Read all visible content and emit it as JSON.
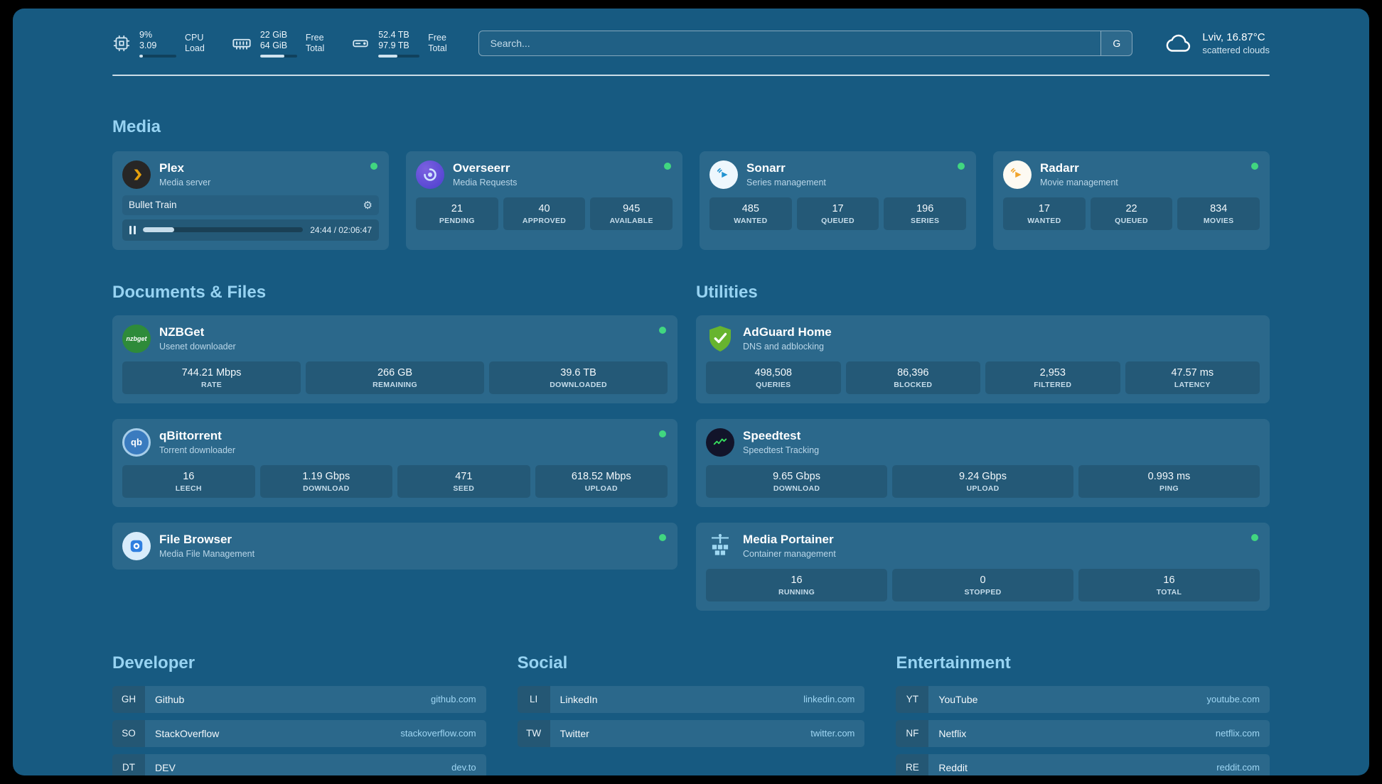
{
  "icons": {
    "gear": "⚙"
  },
  "header": {
    "cpu": {
      "percent": "9%",
      "load": "3.09",
      "label1": "CPU",
      "label2": "Load",
      "bar": 9
    },
    "mem": {
      "free": "22 GiB",
      "total": "64 GiB",
      "label1": "Free",
      "label2": "Total",
      "bar": 66
    },
    "disk": {
      "free": "52.4 TB",
      "total": "97.9 TB",
      "label1": "Free",
      "label2": "Total",
      "bar": 47
    },
    "search": {
      "placeholder": "Search...",
      "button": "G"
    },
    "weather": {
      "location": "Lviv, 16.87°C",
      "condition": "scattered clouds"
    }
  },
  "media": {
    "title": "Media",
    "plex": {
      "name": "Plex",
      "subtitle": "Media server",
      "now_playing": "Bullet Train",
      "time": "24:44 / 02:06:47",
      "progress": 19.5
    },
    "overseerr": {
      "name": "Overseerr",
      "subtitle": "Media Requests",
      "stats": [
        {
          "value": "21",
          "label": "PENDING"
        },
        {
          "value": "40",
          "label": "APPROVED"
        },
        {
          "value": "945",
          "label": "AVAILABLE"
        }
      ]
    },
    "sonarr": {
      "name": "Sonarr",
      "subtitle": "Series management",
      "stats": [
        {
          "value": "485",
          "label": "WANTED"
        },
        {
          "value": "17",
          "label": "QUEUED"
        },
        {
          "value": "196",
          "label": "SERIES"
        }
      ]
    },
    "radarr": {
      "name": "Radarr",
      "subtitle": "Movie management",
      "stats": [
        {
          "value": "17",
          "label": "WANTED"
        },
        {
          "value": "22",
          "label": "QUEUED"
        },
        {
          "value": "834",
          "label": "MOVIES"
        }
      ]
    }
  },
  "documents": {
    "title": "Documents & Files",
    "nzbget": {
      "name": "NZBGet",
      "subtitle": "Usenet downloader",
      "icon_text": "nzbget",
      "stats": [
        {
          "value": "744.21 Mbps",
          "label": "RATE"
        },
        {
          "value": "266 GB",
          "label": "REMAINING"
        },
        {
          "value": "39.6 TB",
          "label": "DOWNLOADED"
        }
      ]
    },
    "qbittorrent": {
      "name": "qBittorrent",
      "subtitle": "Torrent downloader",
      "icon_text": "qb",
      "stats": [
        {
          "value": "16",
          "label": "LEECH"
        },
        {
          "value": "1.19 Gbps",
          "label": "DOWNLOAD"
        },
        {
          "value": "471",
          "label": "SEED"
        },
        {
          "value": "618.52 Mbps",
          "label": "UPLOAD"
        }
      ]
    },
    "filebrowser": {
      "name": "File Browser",
      "subtitle": "Media File Management"
    }
  },
  "utilities": {
    "title": "Utilities",
    "adguard": {
      "name": "AdGuard Home",
      "subtitle": "DNS and adblocking",
      "stats": [
        {
          "value": "498,508",
          "label": "QUERIES"
        },
        {
          "value": "86,396",
          "label": "BLOCKED"
        },
        {
          "value": "2,953",
          "label": "FILTERED"
        },
        {
          "value": "47.57 ms",
          "label": "LATENCY"
        }
      ]
    },
    "speedtest": {
      "name": "Speedtest",
      "subtitle": "Speedtest Tracking",
      "stats": [
        {
          "value": "9.65 Gbps",
          "label": "DOWNLOAD"
        },
        {
          "value": "9.24 Gbps",
          "label": "UPLOAD"
        },
        {
          "value": "0.993 ms",
          "label": "PING"
        }
      ]
    },
    "portainer": {
      "name": "Media Portainer",
      "subtitle": "Container management",
      "stats": [
        {
          "value": "16",
          "label": "RUNNING"
        },
        {
          "value": "0",
          "label": "STOPPED"
        },
        {
          "value": "16",
          "label": "TOTAL"
        }
      ]
    }
  },
  "bookmarks": {
    "developer": {
      "title": "Developer",
      "items": [
        {
          "abbr": "GH",
          "name": "Github",
          "url": "github.com"
        },
        {
          "abbr": "SO",
          "name": "StackOverflow",
          "url": "stackoverflow.com"
        },
        {
          "abbr": "DT",
          "name": "DEV",
          "url": "dev.to"
        }
      ]
    },
    "social": {
      "title": "Social",
      "items": [
        {
          "abbr": "LI",
          "name": "LinkedIn",
          "url": "linkedin.com"
        },
        {
          "abbr": "TW",
          "name": "Twitter",
          "url": "twitter.com"
        }
      ]
    },
    "entertainment": {
      "title": "Entertainment",
      "items": [
        {
          "abbr": "YT",
          "name": "YouTube",
          "url": "youtube.com"
        },
        {
          "abbr": "NF",
          "name": "Netflix",
          "url": "netflix.com"
        },
        {
          "abbr": "RE",
          "name": "Reddit",
          "url": "reddit.com"
        }
      ]
    }
  }
}
